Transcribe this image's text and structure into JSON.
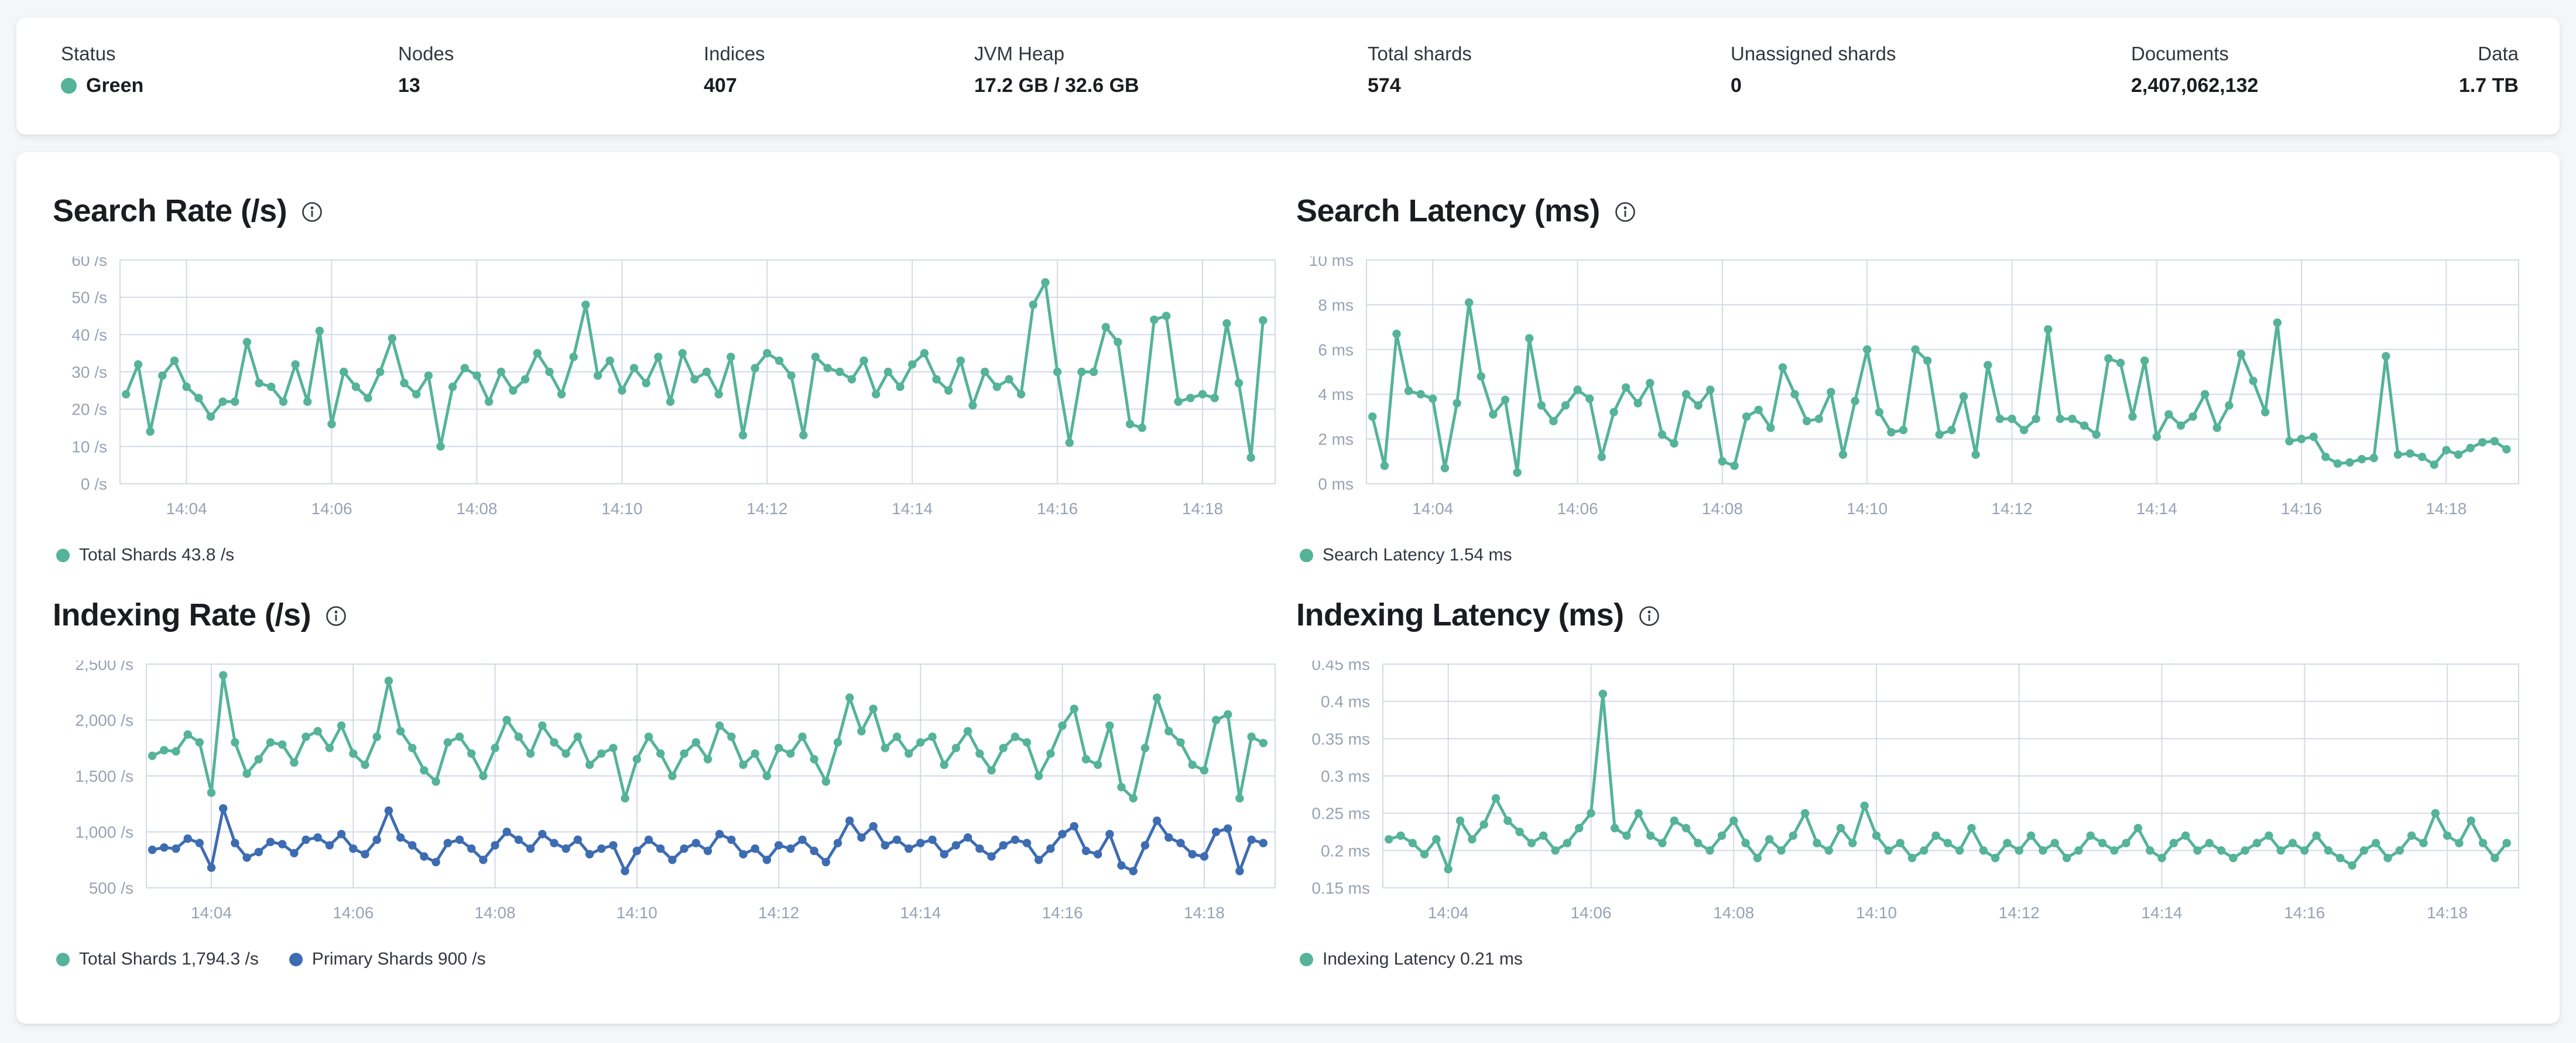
{
  "colors": {
    "teal": "#54b399",
    "blue": "#3d6cb2",
    "grid": "#d4dae5",
    "axis_text": "#98a2b3"
  },
  "status_bar": {
    "items": [
      {
        "id": "status",
        "label": "Status",
        "value": "Green",
        "health_dot": true
      },
      {
        "id": "nodes",
        "label": "Nodes",
        "value": "13"
      },
      {
        "id": "indices",
        "label": "Indices",
        "value": "407"
      },
      {
        "id": "jvm_heap",
        "label": "JVM Heap",
        "value": "17.2 GB / 32.6 GB"
      },
      {
        "id": "total_shards",
        "label": "Total shards",
        "value": "574"
      },
      {
        "id": "unassigned_shards",
        "label": "Unassigned shards",
        "value": "0"
      },
      {
        "id": "documents",
        "label": "Documents",
        "value": "2,407,062,132"
      },
      {
        "id": "data",
        "label": "Data",
        "value": "1.7 TB"
      }
    ],
    "health_color": "#54b399"
  },
  "chart_data": [
    {
      "type": "line",
      "title": "Search Rate (/s)",
      "ylabel": "/s",
      "ylim": [
        0,
        60
      ],
      "yticks": [
        {
          "v": 0,
          "label": "0 /s"
        },
        {
          "v": 10,
          "label": "10 /s"
        },
        {
          "v": 20,
          "label": "20 /s"
        },
        {
          "v": 30,
          "label": "30 /s"
        },
        {
          "v": 40,
          "label": "40 /s"
        },
        {
          "v": 50,
          "label": "50 /s"
        },
        {
          "v": 60,
          "label": "60 /s"
        }
      ],
      "xticks": [
        {
          "label": "14:04",
          "t": 240
        },
        {
          "label": "14:06",
          "t": 360
        },
        {
          "label": "14:08",
          "t": 480
        },
        {
          "label": "14:10",
          "t": 600
        },
        {
          "label": "14:12",
          "t": 720
        },
        {
          "label": "14:14",
          "t": 840
        },
        {
          "label": "14:16",
          "t": 960
        },
        {
          "label": "14:18",
          "t": 1080
        }
      ],
      "x_domain": {
        "start": 185,
        "end": 1140
      },
      "x_points": {
        "t0": 190,
        "step": 10
      },
      "grid": true,
      "legend_position": "bottom",
      "series": [
        {
          "name": "Total Shards",
          "legend_label": "Total Shards 43.8 /s",
          "color": "#54b399",
          "values": [
            24,
            32,
            14,
            29,
            33,
            26,
            23,
            18,
            22,
            22,
            38,
            27,
            26,
            22,
            32,
            22,
            41,
            16,
            30,
            26,
            23,
            30,
            39,
            27,
            24,
            29,
            10,
            26,
            31,
            29,
            22,
            30,
            25,
            28,
            35,
            30,
            24,
            34,
            48,
            29,
            33,
            25,
            31,
            27,
            34,
            22,
            35,
            28,
            30,
            24,
            34,
            13,
            31,
            35,
            33,
            29,
            13,
            34,
            31,
            30,
            28,
            33,
            24,
            30,
            26,
            32,
            35,
            28,
            25,
            33,
            21,
            30,
            26,
            28,
            24,
            48,
            54,
            30,
            11,
            30,
            30,
            42,
            38,
            16,
            15,
            44,
            45,
            22,
            23,
            24,
            23,
            43,
            27,
            7,
            43.8
          ]
        }
      ]
    },
    {
      "type": "line",
      "title": "Search Latency (ms)",
      "ylabel": "ms",
      "ylim": [
        0,
        10
      ],
      "yticks": [
        {
          "v": 0,
          "label": "0 ms"
        },
        {
          "v": 2,
          "label": "2 ms"
        },
        {
          "v": 4,
          "label": "4 ms"
        },
        {
          "v": 6,
          "label": "6 ms"
        },
        {
          "v": 8,
          "label": "8 ms"
        },
        {
          "v": 10,
          "label": "10 ms"
        }
      ],
      "xticks": [
        {
          "label": "14:04",
          "t": 240
        },
        {
          "label": "14:06",
          "t": 360
        },
        {
          "label": "14:08",
          "t": 480
        },
        {
          "label": "14:10",
          "t": 600
        },
        {
          "label": "14:12",
          "t": 720
        },
        {
          "label": "14:14",
          "t": 840
        },
        {
          "label": "14:16",
          "t": 960
        },
        {
          "label": "14:18",
          "t": 1080
        }
      ],
      "x_domain": {
        "start": 185,
        "end": 1140
      },
      "x_points": {
        "t0": 190,
        "step": 10
      },
      "grid": true,
      "legend_position": "bottom",
      "series": [
        {
          "name": "Search Latency",
          "legend_label": "Search Latency 1.54 ms",
          "color": "#54b399",
          "values": [
            3.0,
            0.8,
            6.7,
            4.15,
            4.0,
            3.8,
            0.7,
            3.6,
            8.1,
            4.8,
            3.1,
            3.75,
            0.5,
            6.5,
            3.5,
            2.8,
            3.5,
            4.2,
            3.8,
            1.2,
            3.2,
            4.3,
            3.6,
            4.5,
            2.2,
            1.8,
            4.0,
            3.5,
            4.2,
            1.0,
            0.8,
            3.0,
            3.3,
            2.5,
            5.2,
            4.0,
            2.8,
            2.9,
            4.1,
            1.3,
            3.7,
            6.0,
            3.2,
            2.3,
            2.4,
            6.0,
            5.5,
            2.2,
            2.4,
            3.9,
            1.3,
            5.3,
            2.9,
            2.9,
            2.4,
            2.9,
            6.9,
            2.9,
            2.9,
            2.6,
            2.2,
            5.6,
            5.4,
            3.0,
            5.5,
            2.1,
            3.1,
            2.6,
            3.0,
            4.0,
            2.5,
            3.5,
            5.8,
            4.6,
            3.2,
            7.2,
            1.9,
            2.0,
            2.1,
            1.2,
            0.9,
            0.95,
            1.1,
            1.15,
            5.7,
            1.3,
            1.35,
            1.2,
            0.85,
            1.5,
            1.3,
            1.6,
            1.85,
            1.9,
            1.54
          ]
        }
      ]
    },
    {
      "type": "line",
      "title": "Indexing Rate (/s)",
      "ylabel": "/s",
      "ylim": [
        500,
        2500
      ],
      "yticks": [
        {
          "v": 500,
          "label": "500 /s"
        },
        {
          "v": 1000,
          "label": "1,000 /s"
        },
        {
          "v": 1500,
          "label": "1,500 /s"
        },
        {
          "v": 2000,
          "label": "2,000 /s"
        },
        {
          "v": 2500,
          "label": "2,500 /s"
        }
      ],
      "xticks": [
        {
          "label": "14:04",
          "t": 240
        },
        {
          "label": "14:06",
          "t": 360
        },
        {
          "label": "14:08",
          "t": 480
        },
        {
          "label": "14:10",
          "t": 600
        },
        {
          "label": "14:12",
          "t": 720
        },
        {
          "label": "14:14",
          "t": 840
        },
        {
          "label": "14:16",
          "t": 960
        },
        {
          "label": "14:18",
          "t": 1080
        }
      ],
      "x_domain": {
        "start": 185,
        "end": 1140
      },
      "x_points": {
        "t0": 190,
        "step": 10
      },
      "grid": true,
      "legend_position": "bottom",
      "series": [
        {
          "name": "Total Shards",
          "legend_label": "Total Shards 1,794.3 /s",
          "color": "#54b399",
          "values": [
            1680,
            1730,
            1720,
            1870,
            1800,
            1350,
            2400,
            1800,
            1520,
            1650,
            1800,
            1780,
            1620,
            1850,
            1900,
            1750,
            1950,
            1700,
            1600,
            1850,
            2350,
            1900,
            1750,
            1550,
            1450,
            1800,
            1850,
            1700,
            1500,
            1750,
            2000,
            1850,
            1700,
            1950,
            1800,
            1700,
            1850,
            1600,
            1700,
            1750,
            1300,
            1650,
            1850,
            1700,
            1500,
            1700,
            1800,
            1650,
            1950,
            1850,
            1600,
            1700,
            1500,
            1750,
            1700,
            1850,
            1650,
            1450,
            1800,
            2200,
            1900,
            2100,
            1750,
            1850,
            1700,
            1800,
            1850,
            1600,
            1750,
            1900,
            1700,
            1550,
            1750,
            1850,
            1800,
            1500,
            1700,
            1950,
            2100,
            1650,
            1600,
            1950,
            1400,
            1300,
            1750,
            2200,
            1900,
            1800,
            1600,
            1550,
            2000,
            2050,
            1300,
            1850,
            1794.3
          ]
        },
        {
          "name": "Primary Shards",
          "legend_label": "Primary Shards 900 /s",
          "color": "#3d6cb2",
          "values": [
            840,
            860,
            850,
            940,
            900,
            680,
            1210,
            900,
            770,
            820,
            910,
            890,
            810,
            930,
            950,
            880,
            980,
            850,
            800,
            930,
            1190,
            950,
            880,
            780,
            730,
            900,
            930,
            850,
            750,
            880,
            1000,
            930,
            850,
            980,
            900,
            850,
            930,
            800,
            850,
            880,
            650,
            830,
            930,
            850,
            750,
            850,
            900,
            830,
            980,
            930,
            800,
            850,
            750,
            880,
            850,
            930,
            830,
            730,
            900,
            1100,
            950,
            1050,
            880,
            930,
            850,
            900,
            930,
            800,
            880,
            950,
            850,
            780,
            880,
            930,
            900,
            750,
            850,
            980,
            1050,
            830,
            800,
            980,
            700,
            650,
            880,
            1100,
            950,
            900,
            800,
            780,
            1000,
            1030,
            650,
            930,
            900
          ]
        }
      ]
    },
    {
      "type": "line",
      "title": "Indexing Latency (ms)",
      "ylabel": "ms",
      "ylim": [
        0.15,
        0.45
      ],
      "yticks": [
        {
          "v": 0.15,
          "label": "0.15 ms"
        },
        {
          "v": 0.2,
          "label": "0.2 ms"
        },
        {
          "v": 0.25,
          "label": "0.25 ms"
        },
        {
          "v": 0.3,
          "label": "0.3 ms"
        },
        {
          "v": 0.35,
          "label": "0.35 ms"
        },
        {
          "v": 0.4,
          "label": "0.4 ms"
        },
        {
          "v": 0.45,
          "label": "0.45 ms"
        }
      ],
      "xticks": [
        {
          "label": "14:04",
          "t": 240
        },
        {
          "label": "14:06",
          "t": 360
        },
        {
          "label": "14:08",
          "t": 480
        },
        {
          "label": "14:10",
          "t": 600
        },
        {
          "label": "14:12",
          "t": 720
        },
        {
          "label": "14:14",
          "t": 840
        },
        {
          "label": "14:16",
          "t": 960
        },
        {
          "label": "14:18",
          "t": 1080
        }
      ],
      "x_domain": {
        "start": 185,
        "end": 1140
      },
      "x_points": {
        "t0": 190,
        "step": 10
      },
      "grid": true,
      "legend_position": "bottom",
      "series": [
        {
          "name": "Indexing Latency",
          "legend_label": "Indexing Latency 0.21 ms",
          "color": "#54b399",
          "values": [
            0.215,
            0.22,
            0.21,
            0.195,
            0.215,
            0.175,
            0.24,
            0.215,
            0.235,
            0.27,
            0.24,
            0.225,
            0.21,
            0.22,
            0.2,
            0.21,
            0.23,
            0.25,
            0.41,
            0.23,
            0.22,
            0.25,
            0.22,
            0.21,
            0.24,
            0.23,
            0.21,
            0.2,
            0.22,
            0.24,
            0.21,
            0.19,
            0.215,
            0.2,
            0.22,
            0.25,
            0.21,
            0.2,
            0.23,
            0.21,
            0.26,
            0.22,
            0.2,
            0.21,
            0.19,
            0.2,
            0.22,
            0.21,
            0.2,
            0.23,
            0.2,
            0.19,
            0.21,
            0.2,
            0.22,
            0.2,
            0.21,
            0.19,
            0.2,
            0.22,
            0.21,
            0.2,
            0.21,
            0.23,
            0.2,
            0.19,
            0.21,
            0.22,
            0.2,
            0.21,
            0.2,
            0.19,
            0.2,
            0.21,
            0.22,
            0.2,
            0.21,
            0.2,
            0.22,
            0.2,
            0.19,
            0.18,
            0.2,
            0.21,
            0.19,
            0.2,
            0.22,
            0.21,
            0.25,
            0.22,
            0.21,
            0.24,
            0.21,
            0.19,
            0.21
          ]
        }
      ]
    }
  ]
}
